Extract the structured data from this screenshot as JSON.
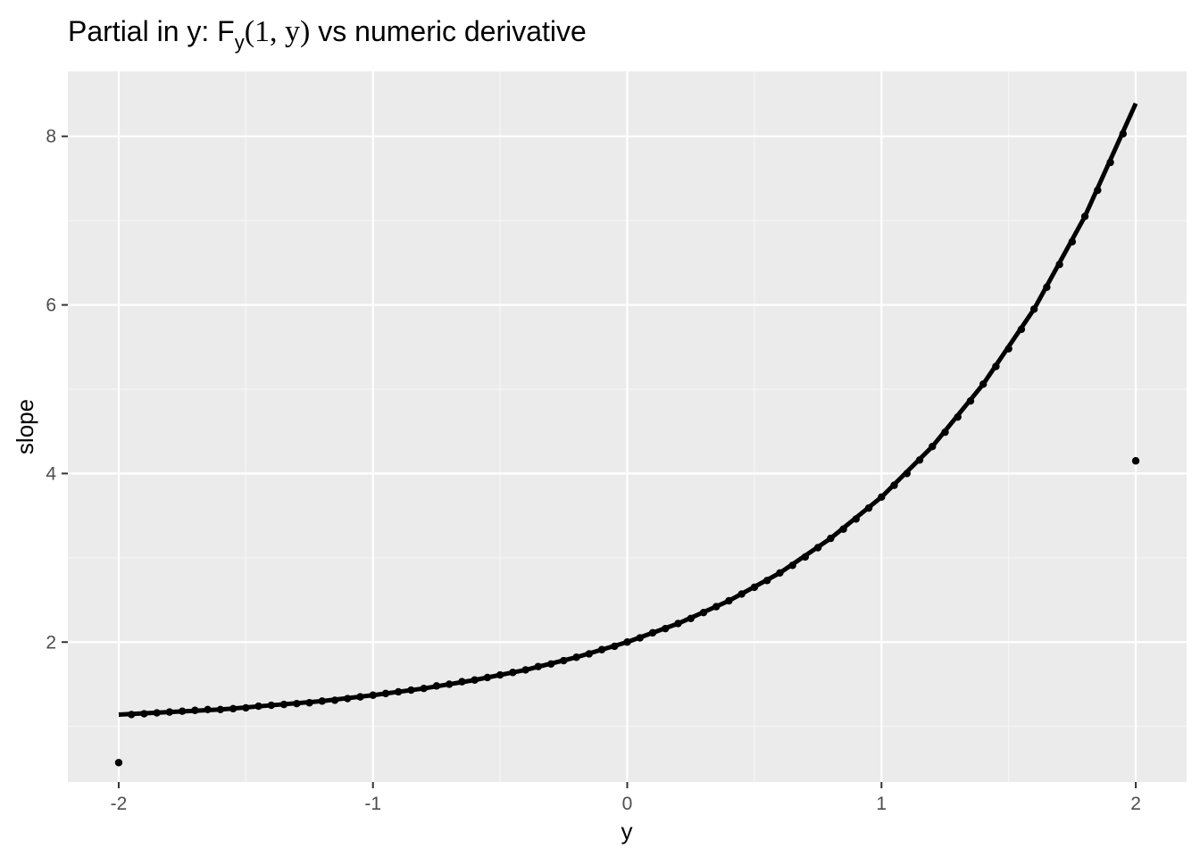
{
  "chart_data": {
    "type": "line",
    "title": {
      "prefix": "Partial in y: F",
      "subscript": "y",
      "args": "(1, y)",
      "suffix": " vs numeric derivative"
    },
    "xlabel": "y",
    "ylabel": "slope",
    "xlim": [
      -2.2,
      2.2
    ],
    "ylim": [
      0.34,
      8.77
    ],
    "x_ticks": [
      -2,
      -1,
      0,
      1,
      2
    ],
    "x_tick_labels": [
      "-2",
      "-1",
      "0",
      "1",
      "2"
    ],
    "y_ticks": [
      2,
      4,
      6,
      8
    ],
    "y_tick_labels": [
      "2",
      "4",
      "6",
      "8"
    ],
    "grid": true,
    "colors": {
      "panel": "#ebebeb",
      "grid_major": "#ffffff",
      "grid_minor": "#f5f5f5",
      "line": "#000000",
      "points": "#000000",
      "ticks": "#333333",
      "tick_text": "#4d4d4d"
    },
    "series": [
      {
        "kind": "line",
        "x": [
          -2.0,
          -1.8,
          -1.6,
          -1.4,
          -1.2,
          -1.0,
          -0.8,
          -0.6,
          -0.4,
          -0.2,
          0.0,
          0.2,
          0.4,
          0.6,
          0.8,
          1.0,
          1.2,
          1.4,
          1.6,
          1.8,
          2.0
        ],
        "y": [
          1.14,
          1.17,
          1.2,
          1.25,
          1.3,
          1.37,
          1.45,
          1.55,
          1.67,
          1.82,
          2.0,
          2.22,
          2.49,
          2.82,
          3.23,
          3.72,
          4.32,
          5.06,
          5.95,
          7.05,
          8.39
        ]
      },
      {
        "kind": "points",
        "x": [
          -2.0,
          -1.95,
          -1.9,
          -1.85,
          -1.8,
          -1.75,
          -1.7,
          -1.65,
          -1.6,
          -1.55,
          -1.5,
          -1.45,
          -1.4,
          -1.35,
          -1.3,
          -1.25,
          -1.2,
          -1.15,
          -1.1,
          -1.05,
          -1.0,
          -0.95,
          -0.9,
          -0.85,
          -0.8,
          -0.75,
          -0.7,
          -0.65,
          -0.6,
          -0.55,
          -0.5,
          -0.45,
          -0.4,
          -0.35,
          -0.3,
          -0.25,
          -0.2,
          -0.15,
          -0.1,
          -0.05,
          0.0,
          0.05,
          0.1,
          0.15,
          0.2,
          0.25,
          0.3,
          0.35,
          0.4,
          0.45,
          0.5,
          0.55,
          0.6,
          0.65,
          0.7,
          0.75,
          0.8,
          0.85,
          0.9,
          0.95,
          1.0,
          1.05,
          1.1,
          1.15,
          1.2,
          1.25,
          1.3,
          1.35,
          1.4,
          1.45,
          1.5,
          1.55,
          1.6,
          1.65,
          1.7,
          1.75,
          1.8,
          1.85,
          1.9,
          1.95,
          2.0
        ],
        "y": [
          0.57,
          1.14,
          1.15,
          1.16,
          1.17,
          1.18,
          1.19,
          1.2,
          1.2,
          1.21,
          1.22,
          1.24,
          1.25,
          1.26,
          1.27,
          1.28,
          1.3,
          1.31,
          1.33,
          1.35,
          1.37,
          1.39,
          1.41,
          1.43,
          1.45,
          1.48,
          1.5,
          1.53,
          1.55,
          1.58,
          1.61,
          1.64,
          1.67,
          1.71,
          1.74,
          1.78,
          1.82,
          1.86,
          1.91,
          1.95,
          2.0,
          2.05,
          2.11,
          2.16,
          2.22,
          2.28,
          2.35,
          2.42,
          2.49,
          2.57,
          2.65,
          2.73,
          2.82,
          2.91,
          3.01,
          3.12,
          3.23,
          3.34,
          3.46,
          3.59,
          3.72,
          3.86,
          4.0,
          4.16,
          4.32,
          4.49,
          4.67,
          4.86,
          5.06,
          5.27,
          5.48,
          5.71,
          5.95,
          6.21,
          6.48,
          6.75,
          7.05,
          7.36,
          7.69,
          8.03,
          4.15
        ]
      }
    ]
  }
}
